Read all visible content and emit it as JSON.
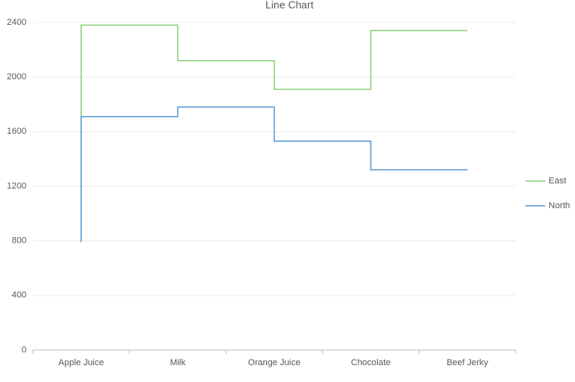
{
  "chart_data": {
    "type": "line",
    "step": "before",
    "title": "Line Chart",
    "categories": [
      "Apple Juice",
      "Milk",
      "Orange Juice",
      "Chocolate",
      "Beef Jerky"
    ],
    "series": [
      {
        "name": "East",
        "color": "#8fcf7a",
        "values": [
          1070,
          2380,
          2120,
          1910,
          2340
        ]
      },
      {
        "name": "North",
        "color": "#5b9bd5",
        "values": [
          790,
          1710,
          1780,
          1530,
          1320
        ]
      }
    ],
    "ylim": [
      0,
      2400
    ],
    "yticks": [
      0,
      400,
      800,
      1200,
      1600,
      2000,
      2400
    ],
    "grid": true,
    "legend": "right"
  }
}
